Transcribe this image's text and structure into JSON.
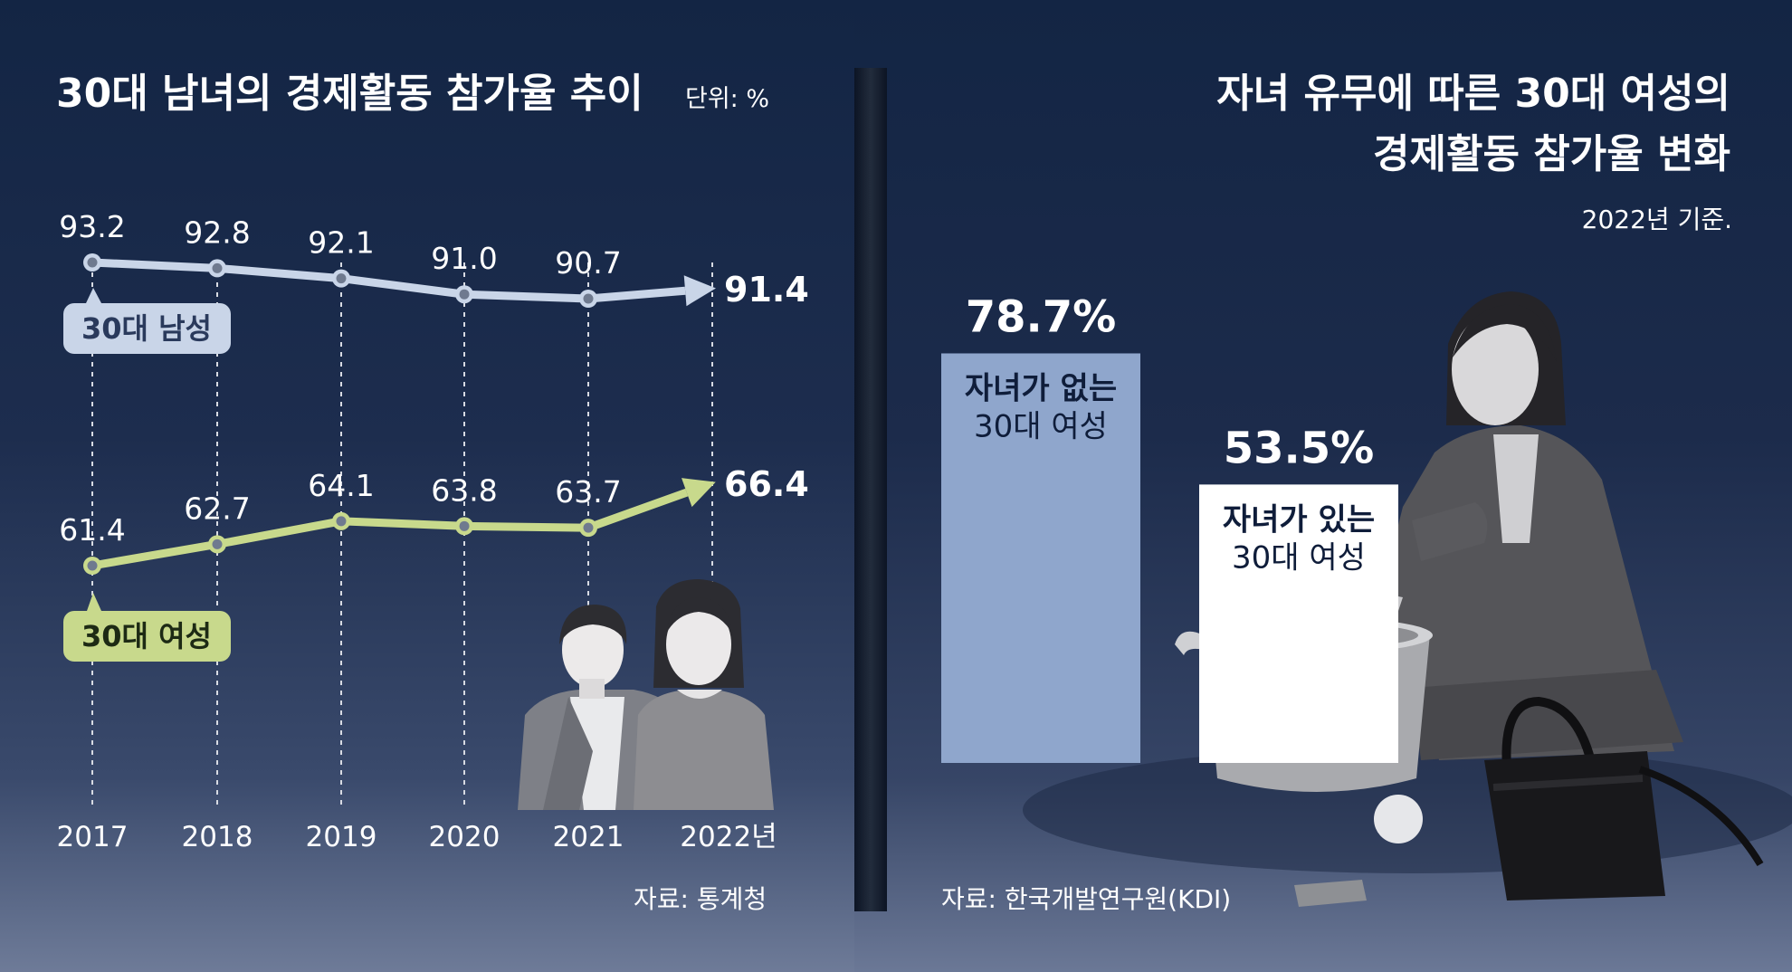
{
  "chart_data": [
    {
      "type": "line",
      "title": "30대 남녀의 경제활동 참가율 추이",
      "unit_label": "단위: %",
      "categories": [
        "2017",
        "2018",
        "2019",
        "2020",
        "2021",
        "2022년"
      ],
      "series": [
        {
          "name": "30대 남성",
          "values": [
            93.2,
            92.8,
            92.1,
            91.0,
            90.7,
            91.4
          ],
          "value_labels": [
            "93.2",
            "92.8",
            "92.1",
            "91.0",
            "90.7",
            "91.4"
          ],
          "color": "#c9d5e8"
        },
        {
          "name": "30대 여성",
          "values": [
            61.4,
            62.7,
            64.1,
            63.8,
            63.7,
            66.4
          ],
          "value_labels": [
            "61.4",
            "62.7",
            "64.1",
            "63.8",
            "63.7",
            "66.4"
          ],
          "color": "#c8d98c"
        }
      ],
      "source": "자료: 통계청"
    },
    {
      "type": "bar",
      "title_lines": [
        "자녀 유무에 따른 30대 여성의",
        "경제활동 참가율 변화"
      ],
      "note": "2022년 기준.",
      "categories": [
        {
          "lines": [
            "자녀가 없는",
            "30대 여성"
          ]
        },
        {
          "lines": [
            "자녀가 있는",
            "30대 여성"
          ]
        }
      ],
      "values": [
        78.7,
        53.5
      ],
      "value_labels": [
        "78.7%",
        "53.5%"
      ],
      "colors": [
        "#8fa6cc",
        "#ffffff"
      ],
      "source": "자료: 한국개발연구원(KDI)"
    }
  ]
}
